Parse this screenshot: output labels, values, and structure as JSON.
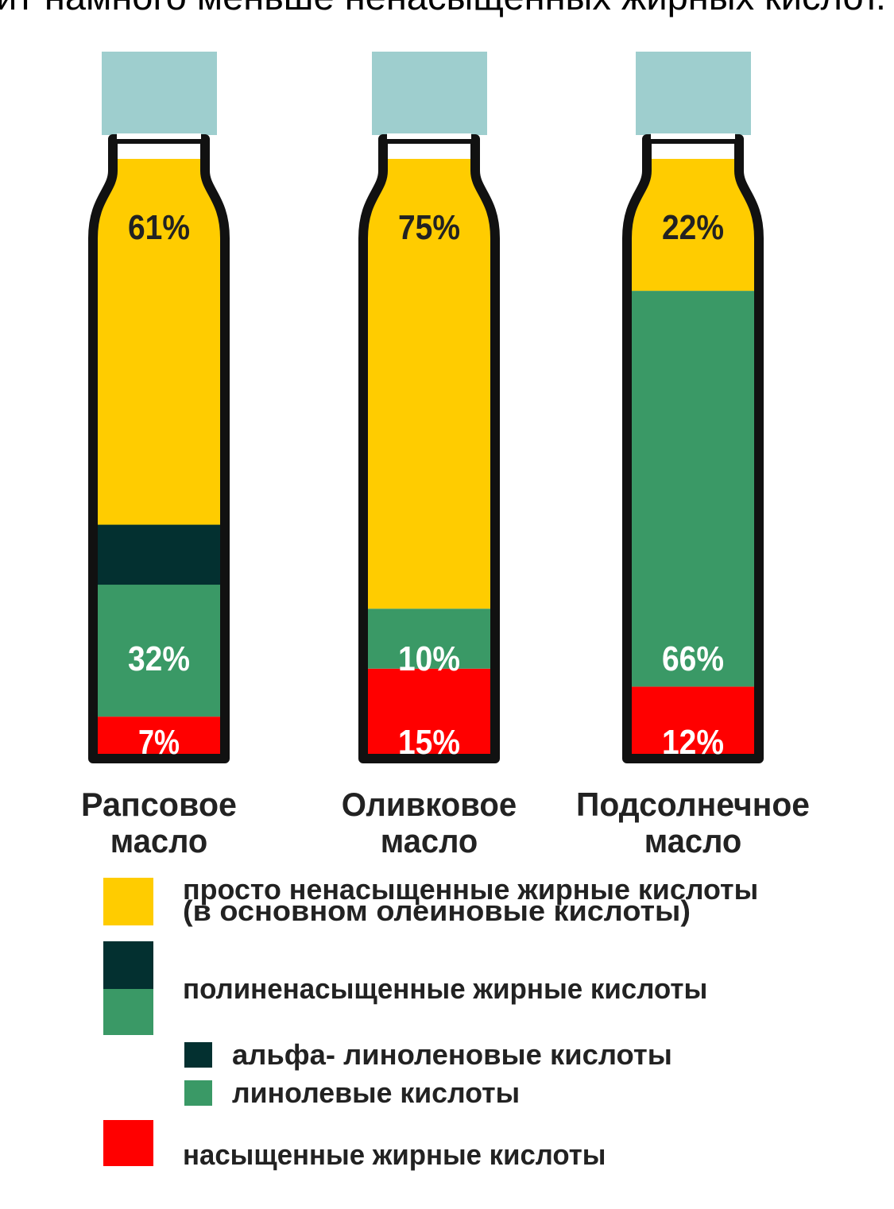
{
  "caption": "ит намного меньше ненасыщенных жирных кислот.",
  "chart_data": {
    "type": "bar",
    "stacked": true,
    "categories": [
      "Рапсовое масло",
      "Оливковое масло",
      "Подсолнечное масло"
    ],
    "ylim": [
      0,
      100
    ],
    "cap_color": "#9ecece",
    "series": [
      {
        "name": "насыщенные жирные кислоты",
        "color": "#ff0000",
        "values": [
          7,
          15,
          12
        ],
        "value_labels": [
          "7%",
          "15%",
          "12%"
        ]
      },
      {
        "name": "полиненасыщенные жирные кислоты",
        "color": "#3a9966",
        "values": [
          32,
          10,
          66
        ],
        "value_labels": [
          "32%",
          "10%",
          "66%"
        ]
      },
      {
        "name": "просто ненасыщенные жирные кислоты (в основном олеиновые кислоты)",
        "color": "#ffcc00",
        "values": [
          61,
          75,
          22
        ],
        "value_labels": [
          "61%",
          "75%",
          "22%"
        ]
      }
    ],
    "subseries": [
      {
        "name": "альфа- линоленовые кислоты",
        "color": "#033030",
        "values": [
          10,
          0,
          0
        ]
      },
      {
        "name": "линолевые кислоты",
        "color": "#3a9966"
      }
    ]
  }
}
